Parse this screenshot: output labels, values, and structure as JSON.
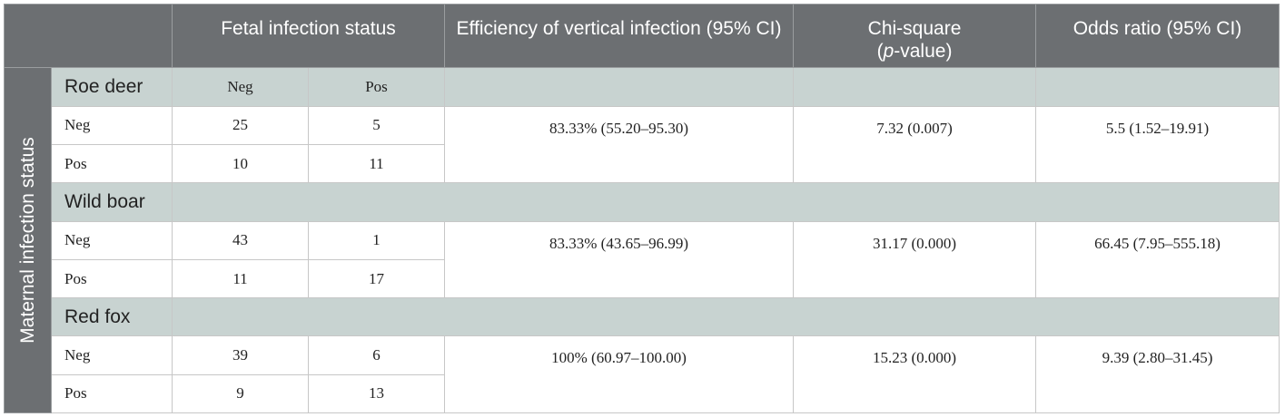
{
  "headers": {
    "fetal": "Fetal infection status",
    "efficiency": "Efficiency of vertical infection (95% CI)",
    "chi_pre": "Chi-square",
    "chi_italic": "p",
    "chi_post": "-value)",
    "chi_open": "(",
    "odds": "Odds ratio (95% CI)"
  },
  "side_label": "Maternal infection status",
  "subheaders": {
    "neg": "Neg",
    "pos": "Pos"
  },
  "groups": [
    {
      "name": "Roe deer",
      "rows": [
        {
          "label": "Neg",
          "neg": "25",
          "pos": "5"
        },
        {
          "label": "Pos",
          "neg": "10",
          "pos": "11"
        }
      ],
      "efficiency": "83.33% (55.20–95.30)",
      "chi": "7.32 (0.007)",
      "odds": "5.5 (1.52–19.91)"
    },
    {
      "name": "Wild boar",
      "rows": [
        {
          "label": "Neg",
          "neg": "43",
          "pos": "1"
        },
        {
          "label": "Pos",
          "neg": "11",
          "pos": "17"
        }
      ],
      "efficiency": "83.33% (43.65–96.99)",
      "chi": "31.17 (0.000)",
      "odds": "66.45 (7.95–555.18)"
    },
    {
      "name": "Red fox",
      "rows": [
        {
          "label": "Neg",
          "neg": "39",
          "pos": "6"
        },
        {
          "label": "Pos",
          "neg": "9",
          "pos": "13"
        }
      ],
      "efficiency": "100% (60.97–100.00)",
      "chi": "15.23 (0.000)",
      "odds": "9.39 (2.80–31.45)"
    }
  ]
}
